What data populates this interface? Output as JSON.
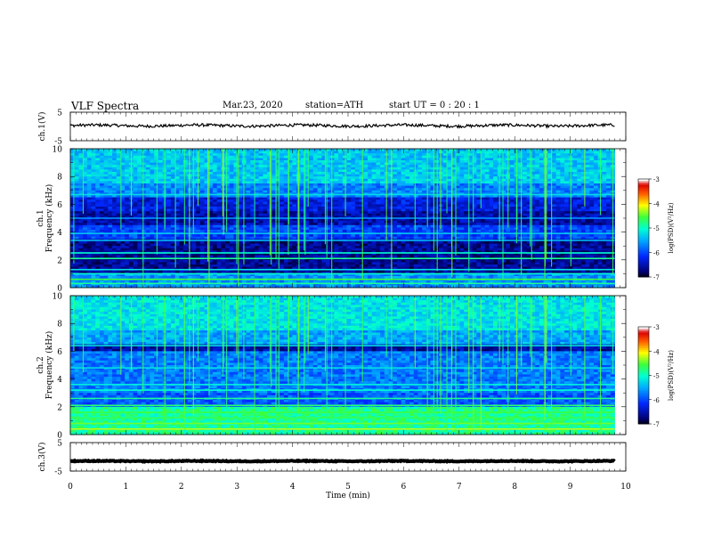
{
  "header": {
    "title": "VLF  Spectra",
    "date": "Mar.23, 2020",
    "station": "station=ATH",
    "start": "start  UT  =    0  : 20 : 1"
  },
  "chart_data": [
    {
      "type": "line",
      "panel": "ch1-waveform",
      "ylabel": "ch.1(V)",
      "ylim": [
        -5,
        5
      ],
      "yticks": [
        "5",
        "-5"
      ],
      "xlim": [
        0,
        10
      ],
      "series": [
        {
          "baseline": 0.3,
          "amplitude": 0.5,
          "color": "#000000",
          "end_x": 9.8
        }
      ]
    },
    {
      "type": "heatmap",
      "panel": "ch1-spectrogram",
      "ylabel_line1": "ch.1",
      "ylabel_line2": "Frequency  (kHz)",
      "ylim": [
        0,
        10
      ],
      "yticks": [
        "0",
        "2",
        "4",
        "6",
        "8",
        "10"
      ],
      "xlim": [
        0,
        10
      ],
      "data_end_x": 9.8,
      "colorbar": {
        "label": "log(PSD)(V²/Hz)",
        "range": [
          -7,
          -3
        ],
        "ticks": [
          "-3",
          "-4",
          "-5",
          "-6",
          "-7"
        ]
      }
    },
    {
      "type": "heatmap",
      "panel": "ch2-spectrogram",
      "ylabel_line1": "ch.2",
      "ylabel_line2": "Frequency  (kHz)",
      "ylim": [
        0,
        10
      ],
      "yticks": [
        "0",
        "2",
        "4",
        "6",
        "8",
        "10"
      ],
      "xlim": [
        0,
        10
      ],
      "data_end_x": 9.8,
      "colorbar": {
        "label": "log(PSD)(V²/Hz)",
        "range": [
          -7,
          -3
        ],
        "ticks": [
          "-3",
          "-4",
          "-5",
          "-6",
          "-7"
        ]
      }
    },
    {
      "type": "line",
      "panel": "ch3-waveform",
      "ylabel": "ch.3(V)",
      "ylim": [
        -5,
        5
      ],
      "yticks": [
        "5",
        "-5"
      ],
      "xlabel": "Time  (min)",
      "xlim": [
        0,
        10
      ],
      "xticks": [
        "0",
        "1",
        "2",
        "3",
        "4",
        "5",
        "6",
        "7",
        "8",
        "9",
        "10"
      ],
      "series": [
        {
          "baseline": -1.5,
          "amplitude": 0.15,
          "color": "#000000",
          "end_x": 9.8
        }
      ]
    }
  ]
}
